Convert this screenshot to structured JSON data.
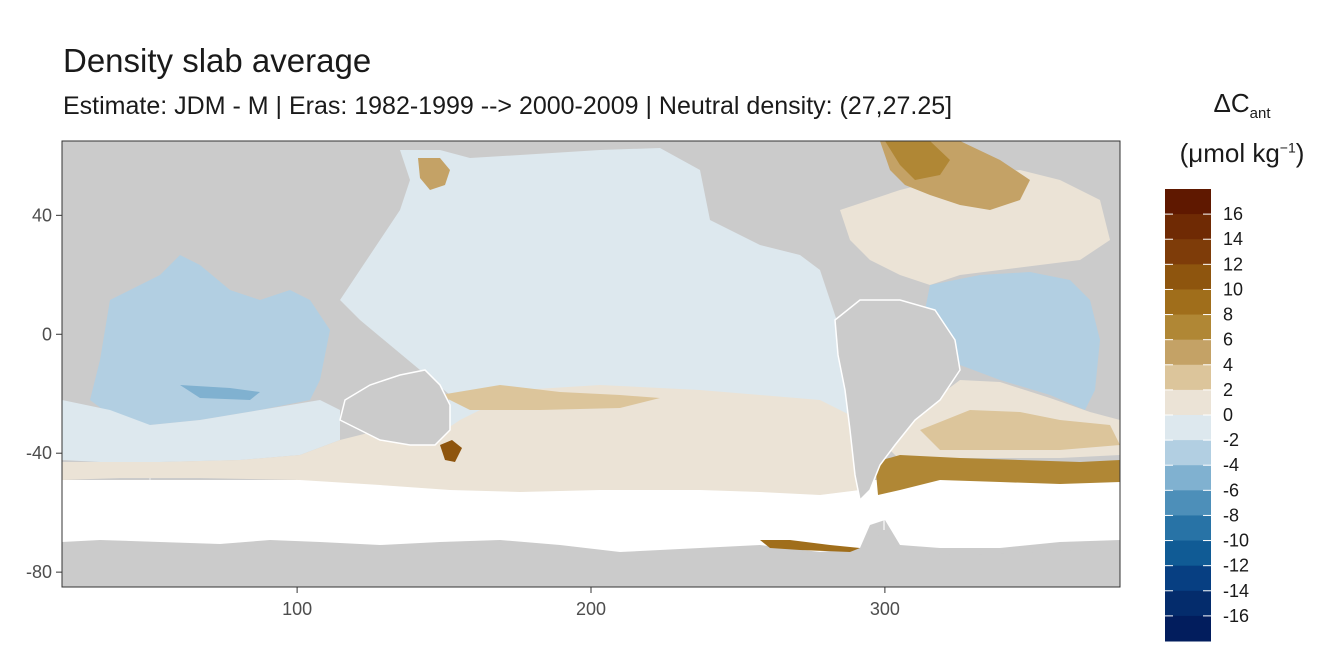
{
  "title": "Density slab average",
  "subtitle": "Estimate: JDM - M | Eras: 1982-1999 --> 2000-2009 | Neutral density: (27,27.25]",
  "legend": {
    "title_delta": "ΔC",
    "title_sub": "ant",
    "unit_prefix": "(μmol kg",
    "unit_sup": "−1",
    "unit_suffix": ")",
    "breaks": [
      "16",
      "14",
      "12",
      "10",
      "8",
      "6",
      "4",
      "2",
      "0",
      "-2",
      "-4",
      "-6",
      "-8",
      "-10",
      "-12",
      "-14",
      "-16"
    ],
    "colors": [
      "#5f1800",
      "#6f2a04",
      "#7e3c09",
      "#8e550e",
      "#a06e1b",
      "#b08735",
      "#c4a266",
      "#dcc59b",
      "#ebe3d6",
      "#dde8ee",
      "#b2cfe2",
      "#80b1d0",
      "#4d8fb9",
      "#2873a6",
      "#105b95",
      "#073f82",
      "#042c6c",
      "#021d5d"
    ]
  },
  "chart_data": {
    "type": "heatmap",
    "title": "Density slab average",
    "subtitle": "Estimate: JDM - M | Eras: 1982-1999 --> 2000-2009 | Neutral density: (27,27.25]",
    "xlim": [
      20,
      380
    ],
    "ylim": [
      -85,
      65
    ],
    "x_ticks": [
      100,
      200,
      300
    ],
    "y_ticks": [
      40,
      0,
      -40,
      -80
    ],
    "grid": true,
    "legend_position": "right",
    "colorbar_label": "ΔCant (μmol kg−1)",
    "colorbar_range": [
      -16,
      16
    ],
    "regions": [
      {
        "name": "North Pacific",
        "approx_value": -1
      },
      {
        "name": "Indian Ocean",
        "approx_value": -3
      },
      {
        "name": "Southern Ocean band",
        "approx_value": 1
      },
      {
        "name": "South Atlantic",
        "approx_value": 3
      },
      {
        "name": "Subarctic North Atlantic",
        "approx_value": 7
      },
      {
        "name": "Tropical Atlantic",
        "approx_value": -3
      },
      {
        "name": "Argentine Basin / 45S Atlantic",
        "approx_value": 9
      }
    ]
  }
}
